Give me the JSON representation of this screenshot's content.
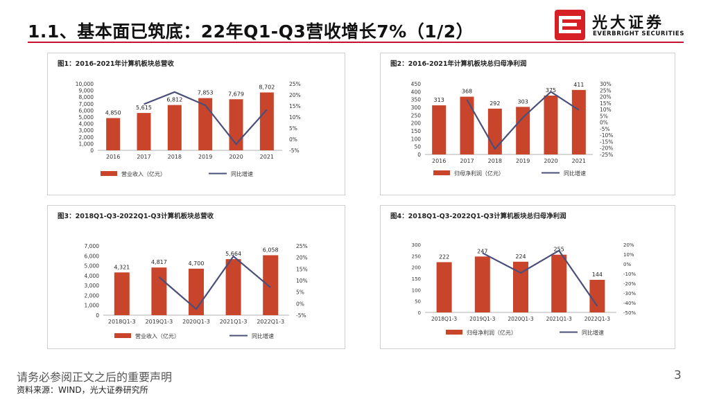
{
  "slide": {
    "title": "1.1、基本面已筑底：22年Q1-Q3营收增长7%（1/2）",
    "logo": {
      "cn": "光大证券",
      "en": "EVERBRIGHT SECURITIES"
    },
    "disclaimer": "请务必参阅正文之后的重要声明",
    "source": "资料来源：WIND，光大证券研究所",
    "page_number": "3",
    "colors": {
      "accent": "#c8102e",
      "bar": "#c8452b",
      "line": "#4a4f7a"
    }
  },
  "chart_data": [
    {
      "type": "bar",
      "title": "图1：2016-2021年计算机板块总营收",
      "categories": [
        "2016",
        "2017",
        "2018",
        "2019",
        "2020",
        "2021"
      ],
      "series": [
        {
          "name": "营业收入（亿元）",
          "type": "bar",
          "axis": "left",
          "values": [
            4850,
            5615,
            6812,
            7853,
            7679,
            8702
          ],
          "labels": [
            "4,850",
            "5,615",
            "6,812",
            "7,853",
            "7,679",
            "8,702"
          ]
        },
        {
          "name": "同比增速",
          "type": "line",
          "axis": "right",
          "x": [
            "2017",
            "2018",
            "2019",
            "2020",
            "2021"
          ],
          "values": [
            15.8,
            21.3,
            15.3,
            -2.2,
            13.3
          ]
        }
      ],
      "y_left": {
        "min": 0,
        "max": 10000,
        "ticks": [
          "0",
          "1,000",
          "2,000",
          "3,000",
          "4,000",
          "5,000",
          "6,000",
          "7,000",
          "8,000",
          "9,000",
          "10,000"
        ]
      },
      "y_right": {
        "min": -5,
        "max": 25,
        "ticks": [
          "-5%",
          "0%",
          "5%",
          "10%",
          "15%",
          "20%",
          "25%"
        ]
      },
      "legend": "bottom",
      "grid": false
    },
    {
      "type": "bar",
      "title": "图2：2016-2021年计算机板块总归母净利润",
      "categories": [
        "2016",
        "2017",
        "2018",
        "2019",
        "2020",
        "2021"
      ],
      "series": [
        {
          "name": "归母净利润（亿元）",
          "type": "bar",
          "axis": "left",
          "values": [
            313,
            368,
            292,
            303,
            375,
            411
          ],
          "labels": [
            "313",
            "368",
            "292",
            "303",
            "375",
            "411"
          ]
        },
        {
          "name": "同比增速",
          "type": "line",
          "axis": "right",
          "x": [
            "2017",
            "2018",
            "2019",
            "2020",
            "2021"
          ],
          "values": [
            17.6,
            -20.7,
            3.8,
            23.8,
            9.6
          ]
        }
      ],
      "y_left": {
        "min": 0,
        "max": 450,
        "ticks": [
          "0",
          "50",
          "100",
          "150",
          "200",
          "250",
          "300",
          "350",
          "400",
          "450"
        ]
      },
      "y_right": {
        "min": -25,
        "max": 30,
        "ticks": [
          "-25%",
          "-20%",
          "-15%",
          "-10%",
          "-5%",
          "0%",
          "5%",
          "10%",
          "15%",
          "20%",
          "25%",
          "30%"
        ]
      },
      "legend": "bottom",
      "grid": false
    },
    {
      "type": "bar",
      "title": "图3：2018Q1-Q3-2022Q1-Q3计算机板块总营收",
      "categories": [
        "2018Q1-3",
        "2019Q1-3",
        "2020Q1-3",
        "2021Q1-3",
        "2022Q1-3"
      ],
      "series": [
        {
          "name": "营业收入（亿元）",
          "type": "bar",
          "axis": "left",
          "values": [
            4321,
            4817,
            4700,
            5664,
            6058
          ],
          "labels": [
            "4,321",
            "4,817",
            "4,700",
            "5,664",
            "6,058"
          ]
        },
        {
          "name": "同比增速",
          "type": "line",
          "axis": "right",
          "x": [
            "2019Q1-3",
            "2020Q1-3",
            "2021Q1-3",
            "2022Q1-3"
          ],
          "values": [
            11.5,
            -2.4,
            20.5,
            7.0
          ]
        }
      ],
      "y_left": {
        "min": 0,
        "max": 7000,
        "ticks": [
          "0",
          "1,000",
          "2,000",
          "3,000",
          "4,000",
          "5,000",
          "6,000",
          "7,000"
        ]
      },
      "y_right": {
        "min": -5,
        "max": 25,
        "ticks": [
          "-5%",
          "0%",
          "5%",
          "10%",
          "15%",
          "20%",
          "25%"
        ]
      },
      "legend": "bottom",
      "grid": false
    },
    {
      "type": "bar",
      "title": "图4：2018Q1-Q3-2022Q1-Q3计算机板块总归母净利润",
      "categories": [
        "2018Q1-3",
        "2019Q1-3",
        "2020Q1-3",
        "2021Q1-3",
        "2022Q1-3"
      ],
      "series": [
        {
          "name": "归母净利润（亿元）",
          "type": "bar",
          "axis": "left",
          "values": [
            222,
            247,
            224,
            255,
            144
          ],
          "labels": [
            "222",
            "247",
            "224",
            "255",
            "144"
          ]
        },
        {
          "name": "同比增速",
          "type": "line",
          "axis": "right",
          "x": [
            "2019Q1-3",
            "2020Q1-3",
            "2021Q1-3",
            "2022Q1-3"
          ],
          "values": [
            11.3,
            -9.3,
            13.8,
            -43.5
          ]
        }
      ],
      "y_left": {
        "min": 0,
        "max": 300,
        "ticks": [
          "0",
          "50",
          "100",
          "150",
          "200",
          "250",
          "300"
        ]
      },
      "y_right": {
        "min": -50,
        "max": 20,
        "ticks": [
          "-50%",
          "-40%",
          "-30%",
          "-20%",
          "-10%",
          "0%",
          "10%",
          "20%"
        ]
      },
      "legend": "bottom",
      "grid": false
    }
  ]
}
